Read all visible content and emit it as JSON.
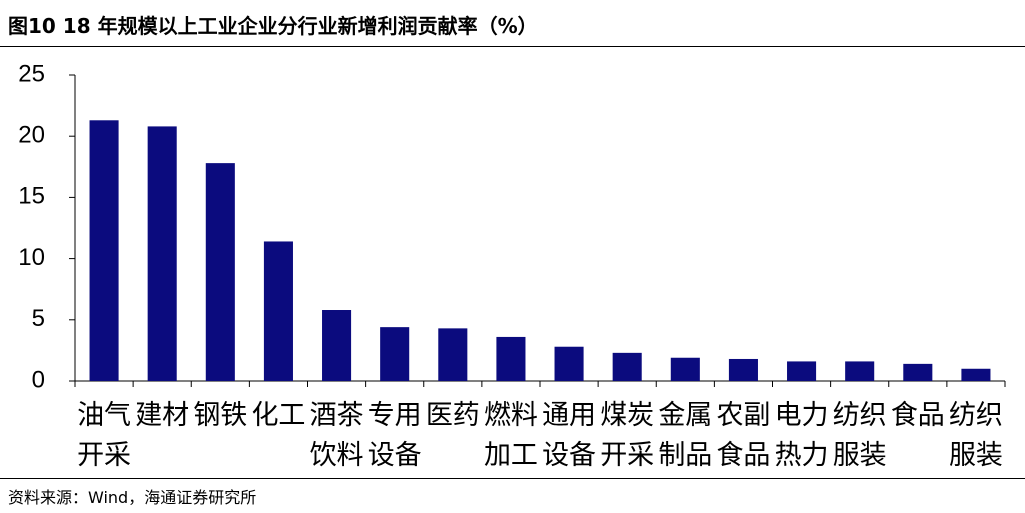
{
  "title": "图10 18 年规模以上工业企业分行业新增利润贡献率（%）",
  "source": "资料来源：Wind，海通证券研究所",
  "chart_data": {
    "type": "bar",
    "categories": [
      "油气开采",
      "建材",
      "钢铁",
      "化工",
      "酒茶饮料",
      "专用设备",
      "医药",
      "燃料加工",
      "通用设备",
      "煤炭开采",
      "金属制品",
      "农副食品",
      "电力热力",
      "纺织服装",
      "食品",
      "纺织服装"
    ],
    "values": [
      21.3,
      20.8,
      17.8,
      11.4,
      5.8,
      4.4,
      4.3,
      3.6,
      2.8,
      2.3,
      1.9,
      1.8,
      1.6,
      1.6,
      1.4,
      1.0
    ],
    "color": "#0b0b7e",
    "ylim": [
      0,
      25
    ],
    "yticks": [
      0,
      5,
      10,
      15,
      20,
      25
    ]
  }
}
